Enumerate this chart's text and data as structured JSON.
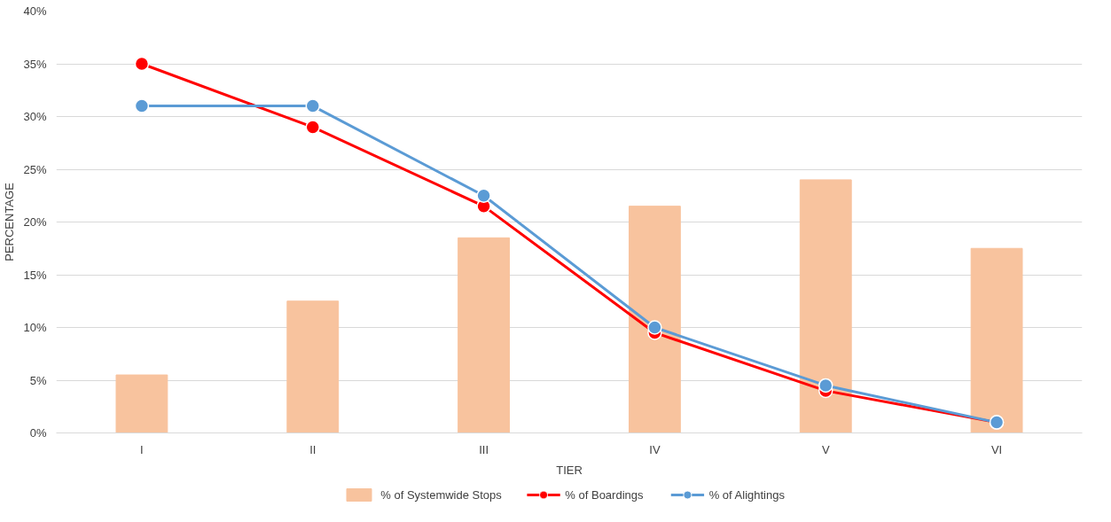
{
  "chart_data": {
    "type": "bar",
    "xlabel": "TIER",
    "ylabel": "PERCENTAGE",
    "categories": [
      "I",
      "II",
      "III",
      "IV",
      "V",
      "VI"
    ],
    "series": [
      {
        "name": "% of Systemwide Stops",
        "color": "#f8c39e",
        "values": [
          5.5,
          12.5,
          18.5,
          21.5,
          24,
          17.5
        ]
      },
      {
        "name": "% of Boardings",
        "type": "line",
        "color": "#ff0000",
        "values": [
          35,
          29,
          21.5,
          9.5,
          4,
          1
        ]
      },
      {
        "name": "% of Alightings",
        "type": "line",
        "color": "#5b9bd5",
        "values": [
          31,
          31,
          22.5,
          10,
          4.5,
          1
        ]
      }
    ],
    "ylim": [
      0,
      40
    ],
    "yticks": [
      {
        "value": 0,
        "label": "0%"
      },
      {
        "value": 5,
        "label": "5%"
      },
      {
        "value": 10,
        "label": "10%"
      },
      {
        "value": 15,
        "label": "15%"
      },
      {
        "value": 20,
        "label": "20%"
      },
      {
        "value": 25,
        "label": "25%"
      },
      {
        "value": 30,
        "label": "30%"
      },
      {
        "value": 35,
        "label": "35%"
      },
      {
        "value": 40,
        "label": "40%"
      }
    ],
    "grid": "y",
    "legend": "bottom",
    "marker": "circle",
    "line_style": "solid"
  }
}
